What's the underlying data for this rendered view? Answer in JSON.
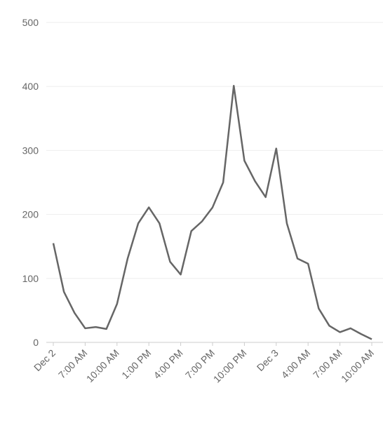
{
  "chart_data": {
    "type": "line",
    "categories": [
      "Dec 2",
      null,
      null,
      "7:00 AM",
      null,
      null,
      "10:00 AM",
      null,
      null,
      "1:00 PM",
      null,
      null,
      "4:00 PM",
      null,
      null,
      "7:00 PM",
      null,
      null,
      "10:00 PM",
      null,
      null,
      "Dec 3",
      null,
      null,
      "4:00 AM",
      null,
      null,
      "7:00 AM",
      null,
      null,
      "10:00 AM"
    ],
    "series": [
      {
        "color": "#666666",
        "values": [
          155,
          79,
          46,
          22,
          24,
          21,
          60,
          131,
          186,
          211,
          186,
          126,
          106,
          174,
          189,
          211,
          250,
          401,
          284,
          252,
          227,
          303,
          186,
          131,
          123,
          53,
          26,
          16,
          22,
          13,
          5
        ]
      }
    ],
    "ylim": [
      0,
      500
    ],
    "yticks": [
      0,
      100,
      200,
      300,
      400,
      500
    ],
    "grid": true
  }
}
